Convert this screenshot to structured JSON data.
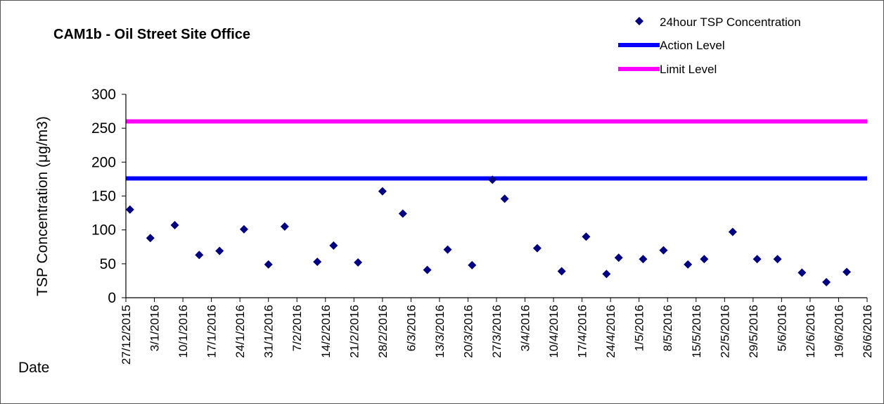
{
  "colors": {
    "series": "#000080",
    "action": "#0000ff",
    "limit": "#ff00ff"
  },
  "chart_data": {
    "type": "scatter",
    "title": "CAM1b - Oil Street Site Office",
    "ylabel": "TSP Concentration (μg/m3)",
    "xlabel": "Date",
    "ylim": [
      0,
      300
    ],
    "yticks": [
      0,
      50,
      100,
      150,
      200,
      250,
      300
    ],
    "xlim": [
      "27/12/2015",
      "26/6/2016"
    ],
    "x_tick_labels": [
      "27/12/2015",
      "3/1/2016",
      "10/1/2016",
      "17/1/2016",
      "24/1/2016",
      "31/1/2016",
      "7/2/2016",
      "14/2/2016",
      "21/2/2016",
      "28/2/2016",
      "6/3/2016",
      "13/3/2016",
      "20/3/2016",
      "27/3/2016",
      "3/4/2016",
      "10/4/2016",
      "17/4/2016",
      "24/4/2016",
      "1/5/2016",
      "8/5/2016",
      "15/5/2016",
      "22/5/2016",
      "29/5/2016",
      "5/6/2016",
      "12/6/2016",
      "19/6/2016",
      "26/6/2016"
    ],
    "legend_position": "top-right",
    "grid": false,
    "series": [
      {
        "name": "24hour TSP Concentration",
        "marker": "diamond",
        "x": [
          "28/12/2015",
          "2/1/2016",
          "8/1/2016",
          "14/1/2016",
          "19/1/2016",
          "25/1/2016",
          "31/1/2016",
          "4/2/2016",
          "12/2/2016",
          "16/2/2016",
          "22/2/2016",
          "28/2/2016",
          "4/3/2016",
          "10/3/2016",
          "15/3/2016",
          "21/3/2016",
          "26/3/2016",
          "29/3/2016",
          "6/4/2016",
          "12/4/2016",
          "18/4/2016",
          "23/4/2016",
          "26/4/2016",
          "2/5/2016",
          "7/5/2016",
          "13/5/2016",
          "17/5/2016",
          "24/5/2016",
          "30/5/2016",
          "4/6/2016",
          "10/6/2016",
          "16/6/2016",
          "21/6/2016"
        ],
        "values": [
          130,
          88,
          107,
          63,
          69,
          101,
          49,
          105,
          53,
          77,
          52,
          157,
          124,
          41,
          71,
          48,
          174,
          146,
          73,
          39,
          90,
          35,
          59,
          57,
          70,
          49,
          57,
          97,
          57,
          57,
          37,
          23,
          38
        ]
      },
      {
        "name": "Action Level",
        "type": "hline",
        "value": 176
      },
      {
        "name": "Limit Level",
        "type": "hline",
        "value": 260
      }
    ]
  }
}
